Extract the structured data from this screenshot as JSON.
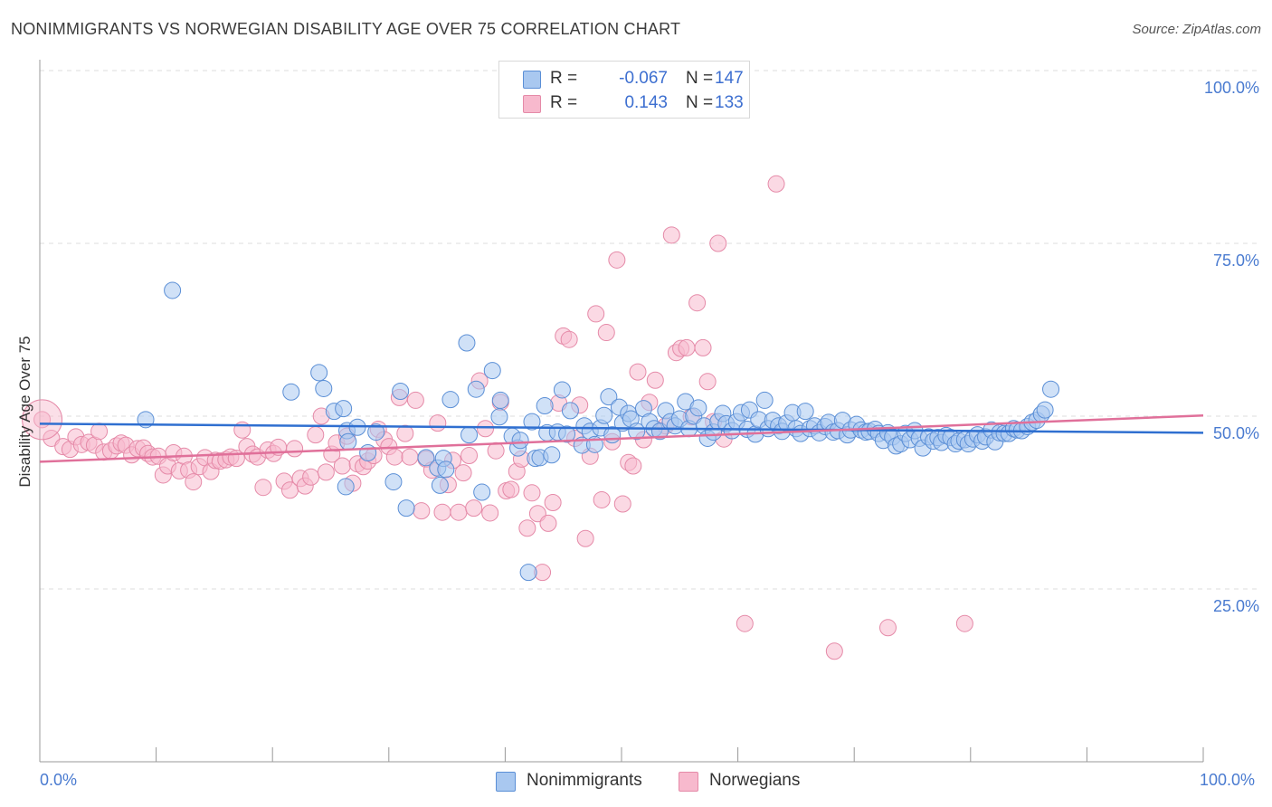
{
  "title": "NONIMMIGRANTS VS NORWEGIAN DISABILITY AGE OVER 75 CORRELATION CHART",
  "source": "Source: ZipAtlas.com",
  "colors": {
    "blue_fill": "#a9c8f0",
    "blue_stroke": "#5b8fd6",
    "blue_line": "#2f6fd0",
    "pink_fill": "#f7b9cd",
    "pink_stroke": "#e58aa8",
    "pink_line": "#e0709a",
    "tick_text": "#4a7bd0",
    "grid": "#dddddd"
  },
  "legend": {
    "rows": [
      {
        "r_label": "R =",
        "r_value": "-0.067",
        "n_label": "N =",
        "n_value": "147",
        "series": "blue"
      },
      {
        "r_label": "R =",
        "r_value": "0.143",
        "n_label": "N =",
        "n_value": "133",
        "series": "pink"
      }
    ]
  },
  "bottom_legend": {
    "blue": "Nonimmigrants",
    "pink": "Norwegians"
  },
  "chart_data": {
    "type": "scatter",
    "title": "NONIMMIGRANTS VS NORWEGIAN DISABILITY AGE OVER 75 CORRELATION CHART",
    "xlabel": "",
    "ylabel": "Disability Age Over 75",
    "xlim": [
      0,
      100
    ],
    "ylim": [
      0,
      100
    ],
    "x_tick_labels": [
      "0.0%",
      "100.0%"
    ],
    "y_ticks": [
      25,
      50,
      75,
      100
    ],
    "y_tick_labels": [
      "25.0%",
      "50.0%",
      "75.0%",
      "100.0%"
    ],
    "grid": "horizontal dashed",
    "legend_position": "top-center",
    "series": [
      {
        "name": "Nonimmigrants",
        "color": "blue",
        "r": -0.067,
        "n": 147,
        "trend": {
          "x0": 0,
          "y0": 48.9,
          "x1": 100,
          "y1": 47.6
        },
        "points": [
          [
            9.1,
            49.5
          ],
          [
            11.4,
            68.2
          ],
          [
            21.6,
            53.5
          ],
          [
            24.0,
            56.3
          ],
          [
            24.4,
            54.0
          ],
          [
            25.3,
            50.7
          ],
          [
            26.1,
            51.1
          ],
          [
            26.3,
            39.8
          ],
          [
            26.4,
            47.9
          ],
          [
            26.5,
            46.3
          ],
          [
            27.3,
            48.4
          ],
          [
            28.2,
            44.7
          ],
          [
            28.9,
            47.7
          ],
          [
            30.4,
            40.5
          ],
          [
            31.0,
            53.6
          ],
          [
            31.5,
            36.7
          ],
          [
            33.2,
            44.0
          ],
          [
            34.2,
            42.5
          ],
          [
            34.4,
            40.0
          ],
          [
            34.7,
            43.9
          ],
          [
            34.9,
            42.3
          ],
          [
            35.3,
            52.4
          ],
          [
            36.7,
            60.6
          ],
          [
            36.9,
            47.3
          ],
          [
            37.5,
            53.9
          ],
          [
            38.0,
            39.0
          ],
          [
            38.9,
            56.6
          ],
          [
            39.5,
            49.9
          ],
          [
            39.6,
            52.3
          ],
          [
            40.6,
            47.1
          ],
          [
            41.1,
            45.4
          ],
          [
            41.3,
            46.5
          ],
          [
            42.0,
            27.4
          ],
          [
            42.3,
            49.2
          ],
          [
            42.6,
            43.9
          ],
          [
            43.0,
            44.0
          ],
          [
            43.4,
            51.5
          ],
          [
            43.6,
            47.6
          ],
          [
            44.0,
            44.4
          ],
          [
            44.5,
            47.7
          ],
          [
            44.9,
            53.8
          ],
          [
            45.3,
            47.4
          ],
          [
            45.6,
            50.8
          ],
          [
            46.6,
            45.8
          ],
          [
            46.8,
            48.6
          ],
          [
            47.3,
            47.8
          ],
          [
            47.7,
            45.9
          ],
          [
            48.2,
            48.3
          ],
          [
            48.5,
            50.1
          ],
          [
            48.9,
            52.8
          ],
          [
            49.2,
            47.3
          ],
          [
            49.8,
            51.3
          ],
          [
            50.1,
            49.0
          ],
          [
            50.6,
            50.4
          ],
          [
            50.8,
            49.6
          ],
          [
            51.3,
            47.8
          ],
          [
            51.9,
            51.1
          ],
          [
            52.4,
            49.2
          ],
          [
            52.8,
            48.2
          ],
          [
            53.3,
            47.8
          ],
          [
            53.8,
            50.8
          ],
          [
            54.2,
            49.2
          ],
          [
            54.6,
            48.6
          ],
          [
            55.0,
            49.6
          ],
          [
            55.5,
            52.1
          ],
          [
            55.8,
            48.2
          ],
          [
            56.2,
            50.0
          ],
          [
            56.6,
            51.2
          ],
          [
            57.1,
            48.6
          ],
          [
            57.4,
            46.8
          ],
          [
            57.9,
            47.7
          ],
          [
            58.3,
            49.2
          ],
          [
            58.7,
            50.4
          ],
          [
            59.0,
            48.9
          ],
          [
            59.5,
            47.9
          ],
          [
            59.9,
            49.2
          ],
          [
            60.3,
            50.5
          ],
          [
            60.8,
            48.1
          ],
          [
            61.0,
            50.9
          ],
          [
            61.5,
            47.4
          ],
          [
            61.8,
            49.5
          ],
          [
            62.3,
            52.3
          ],
          [
            62.6,
            48.2
          ],
          [
            63.0,
            49.4
          ],
          [
            63.5,
            48.6
          ],
          [
            63.8,
            47.8
          ],
          [
            64.2,
            49.0
          ],
          [
            64.7,
            50.5
          ],
          [
            65.0,
            48.2
          ],
          [
            65.4,
            47.5
          ],
          [
            65.8,
            50.7
          ],
          [
            66.2,
            48.2
          ],
          [
            66.6,
            48.6
          ],
          [
            67.0,
            47.6
          ],
          [
            67.5,
            48.5
          ],
          [
            67.8,
            49.1
          ],
          [
            68.2,
            47.7
          ],
          [
            68.6,
            47.9
          ],
          [
            69.0,
            49.4
          ],
          [
            69.4,
            47.3
          ],
          [
            69.7,
            48.0
          ],
          [
            70.2,
            48.8
          ],
          [
            70.6,
            48.0
          ],
          [
            71.0,
            47.7
          ],
          [
            71.3,
            47.8
          ],
          [
            71.8,
            48.1
          ],
          [
            72.1,
            47.5
          ],
          [
            72.5,
            46.5
          ],
          [
            72.9,
            47.6
          ],
          [
            73.3,
            47.0
          ],
          [
            73.6,
            45.7
          ],
          [
            74.0,
            46.0
          ],
          [
            74.4,
            47.5
          ],
          [
            74.8,
            46.6
          ],
          [
            75.2,
            47.9
          ],
          [
            75.6,
            46.8
          ],
          [
            75.9,
            45.4
          ],
          [
            76.4,
            47.0
          ],
          [
            76.8,
            46.4
          ],
          [
            77.2,
            46.9
          ],
          [
            77.5,
            46.2
          ],
          [
            77.9,
            47.2
          ],
          [
            78.3,
            46.9
          ],
          [
            78.7,
            46.0
          ],
          [
            79.0,
            46.4
          ],
          [
            79.5,
            46.6
          ],
          [
            79.8,
            46.0
          ],
          [
            80.2,
            46.7
          ],
          [
            80.6,
            47.3
          ],
          [
            81.0,
            46.4
          ],
          [
            81.3,
            47.0
          ],
          [
            81.8,
            48.0
          ],
          [
            82.1,
            46.3
          ],
          [
            82.5,
            47.6
          ],
          [
            82.9,
            47.5
          ],
          [
            83.3,
            47.5
          ],
          [
            83.7,
            48.2
          ],
          [
            84.0,
            48.0
          ],
          [
            84.4,
            47.9
          ],
          [
            84.9,
            48.5
          ],
          [
            85.3,
            49.1
          ],
          [
            85.7,
            49.4
          ],
          [
            86.1,
            50.3
          ],
          [
            86.4,
            50.9
          ],
          [
            86.9,
            53.9
          ]
        ]
      },
      {
        "name": "Norwegians",
        "color": "pink",
        "r": 0.143,
        "n": 133,
        "trend": {
          "x0": 0,
          "y0": 43.4,
          "x1": 100,
          "y1": 50.1
        },
        "points": [
          [
            0.2,
            49.5
          ],
          [
            1.0,
            46.8
          ],
          [
            2.0,
            45.6
          ],
          [
            2.6,
            45.2
          ],
          [
            3.1,
            47.0
          ],
          [
            3.6,
            45.9
          ],
          [
            4.2,
            46.2
          ],
          [
            4.7,
            45.8
          ],
          [
            5.1,
            47.8
          ],
          [
            5.5,
            44.8
          ],
          [
            6.1,
            45.0
          ],
          [
            6.6,
            45.7
          ],
          [
            7.0,
            46.1
          ],
          [
            7.4,
            45.8
          ],
          [
            7.9,
            44.4
          ],
          [
            8.4,
            45.3
          ],
          [
            8.9,
            45.4
          ],
          [
            9.3,
            44.6
          ],
          [
            9.7,
            44.1
          ],
          [
            10.2,
            44.2
          ],
          [
            10.6,
            41.5
          ],
          [
            11.0,
            42.8
          ],
          [
            11.5,
            44.7
          ],
          [
            12.0,
            42.1
          ],
          [
            12.4,
            44.2
          ],
          [
            12.8,
            42.2
          ],
          [
            13.2,
            40.5
          ],
          [
            13.7,
            42.7
          ],
          [
            14.2,
            44.0
          ],
          [
            14.7,
            42.0
          ],
          [
            15.1,
            43.6
          ],
          [
            15.5,
            43.5
          ],
          [
            16.0,
            43.7
          ],
          [
            16.4,
            44.1
          ],
          [
            16.9,
            43.9
          ],
          [
            17.4,
            48.0
          ],
          [
            17.8,
            45.6
          ],
          [
            18.3,
            44.5
          ],
          [
            18.7,
            44.1
          ],
          [
            19.2,
            39.7
          ],
          [
            19.6,
            45.1
          ],
          [
            20.1,
            44.6
          ],
          [
            20.5,
            45.5
          ],
          [
            21.0,
            40.6
          ],
          [
            21.5,
            39.3
          ],
          [
            21.9,
            45.3
          ],
          [
            22.4,
            41.0
          ],
          [
            22.8,
            39.9
          ],
          [
            23.3,
            41.2
          ],
          [
            23.7,
            47.3
          ],
          [
            24.2,
            50.0
          ],
          [
            24.6,
            41.9
          ],
          [
            25.1,
            44.5
          ],
          [
            25.5,
            46.1
          ],
          [
            26.0,
            42.8
          ],
          [
            26.4,
            47.1
          ],
          [
            26.9,
            40.3
          ],
          [
            27.3,
            43.1
          ],
          [
            27.8,
            42.7
          ],
          [
            28.2,
            43.5
          ],
          [
            28.7,
            44.3
          ],
          [
            29.1,
            48.1
          ],
          [
            29.6,
            46.6
          ],
          [
            30.0,
            45.6
          ],
          [
            30.5,
            44.1
          ],
          [
            30.9,
            52.7
          ],
          [
            31.4,
            47.5
          ],
          [
            31.8,
            44.1
          ],
          [
            32.3,
            52.3
          ],
          [
            32.8,
            36.3
          ],
          [
            33.2,
            43.8
          ],
          [
            33.7,
            42.2
          ],
          [
            34.2,
            49.0
          ],
          [
            34.6,
            36.1
          ],
          [
            35.1,
            40.1
          ],
          [
            35.5,
            43.6
          ],
          [
            36.0,
            36.1
          ],
          [
            36.4,
            41.8
          ],
          [
            36.9,
            44.3
          ],
          [
            37.3,
            36.7
          ],
          [
            37.8,
            55.1
          ],
          [
            38.3,
            48.2
          ],
          [
            38.7,
            36.0
          ],
          [
            39.2,
            45.0
          ],
          [
            39.6,
            52.0
          ],
          [
            40.1,
            39.2
          ],
          [
            40.5,
            39.4
          ],
          [
            41.0,
            42.0
          ],
          [
            41.4,
            43.8
          ],
          [
            41.9,
            33.8
          ],
          [
            42.3,
            38.9
          ],
          [
            42.8,
            35.9
          ],
          [
            43.2,
            27.4
          ],
          [
            43.7,
            34.5
          ],
          [
            44.1,
            37.5
          ],
          [
            44.6,
            51.9
          ],
          [
            45.0,
            61.6
          ],
          [
            45.5,
            61.1
          ],
          [
            46.0,
            46.8
          ],
          [
            46.4,
            51.6
          ],
          [
            46.9,
            32.3
          ],
          [
            47.3,
            44.2
          ],
          [
            47.8,
            64.8
          ],
          [
            48.3,
            37.9
          ],
          [
            48.7,
            62.1
          ],
          [
            49.2,
            46.3
          ],
          [
            49.6,
            72.6
          ],
          [
            50.1,
            37.3
          ],
          [
            50.6,
            43.3
          ],
          [
            51.0,
            42.8
          ],
          [
            51.4,
            56.4
          ],
          [
            51.9,
            46.6
          ],
          [
            52.4,
            52.0
          ],
          [
            52.9,
            55.2
          ],
          [
            53.3,
            47.9
          ],
          [
            53.8,
            48.6
          ],
          [
            54.3,
            76.2
          ],
          [
            54.7,
            59.2
          ],
          [
            55.1,
            59.8
          ],
          [
            55.6,
            59.9
          ],
          [
            56.0,
            49.9
          ],
          [
            56.5,
            66.4
          ],
          [
            57.0,
            59.9
          ],
          [
            57.4,
            55.0
          ],
          [
            57.9,
            49.2
          ],
          [
            58.3,
            75.0
          ],
          [
            58.8,
            46.7
          ],
          [
            63.3,
            83.6
          ],
          [
            68.3,
            16.0
          ],
          [
            72.9,
            19.4
          ],
          [
            79.5,
            20.0
          ],
          [
            60.6,
            20.0
          ]
        ]
      }
    ]
  }
}
